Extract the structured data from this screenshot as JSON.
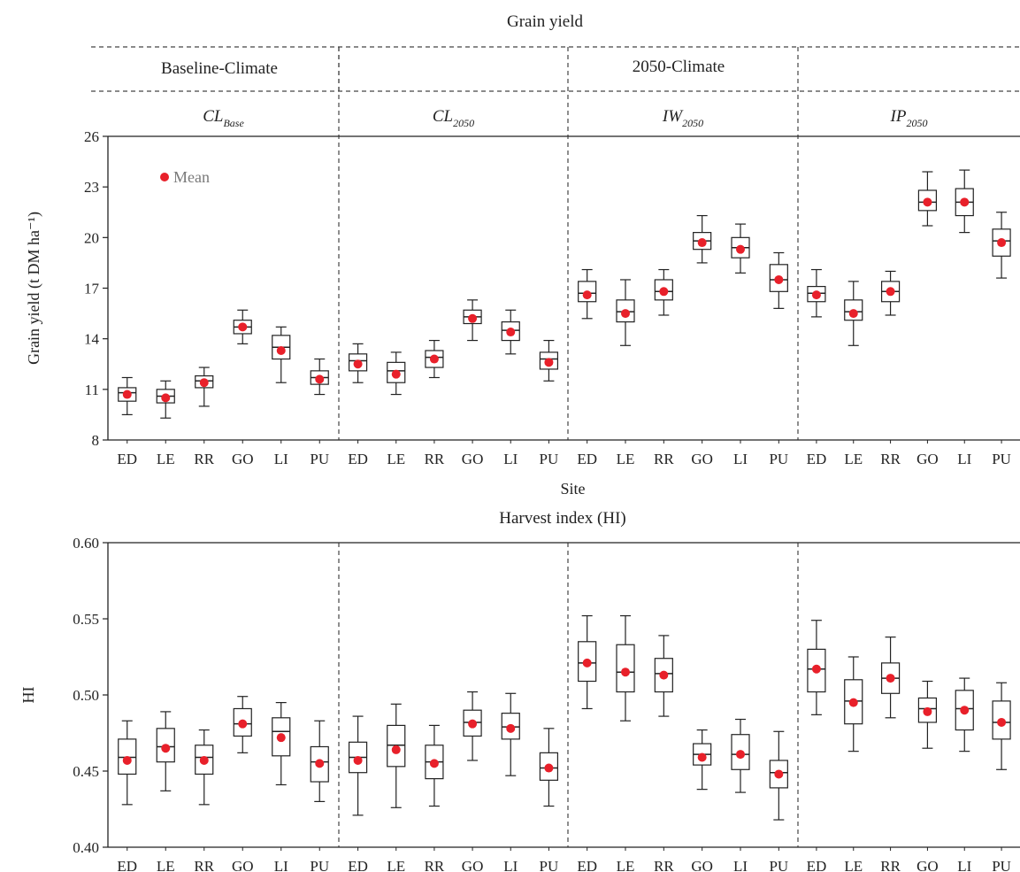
{
  "figure": {
    "top_title": "Grain yield",
    "climate_headers": [
      "Baseline-Climate",
      "2050-Climate"
    ],
    "panels": [
      {
        "name": "CL",
        "sub": "Base"
      },
      {
        "name": "CL",
        "sub": "2050"
      },
      {
        "name": "IW",
        "sub": "2050"
      },
      {
        "name": "IP",
        "sub": "2050"
      }
    ],
    "sites": [
      "ED",
      "LE",
      "RR",
      "GO",
      "LI",
      "PU"
    ],
    "mean_marker_color": "#e8202a",
    "legend_label": "Mean"
  },
  "chart_data": [
    {
      "type": "box",
      "title": "Grain yield",
      "xlabel": "Site",
      "ylabel": "Grain yield (t DM ha⁻¹)",
      "ylim": [
        8,
        26
      ],
      "yticks": [
        8,
        11,
        14,
        17,
        20,
        23,
        26
      ],
      "ytick_labels": [
        "8",
        "11",
        "14",
        "17",
        "20",
        "23",
        "26"
      ],
      "legend": {
        "label": "Mean",
        "placement": "top-left"
      },
      "groups": [
        {
          "panel": "CL Base",
          "boxes": [
            {
              "site": "ED",
              "min": 9.5,
              "q1": 10.3,
              "median": 10.8,
              "q3": 11.1,
              "max": 11.7,
              "mean": 10.7
            },
            {
              "site": "LE",
              "min": 9.3,
              "q1": 10.2,
              "median": 10.6,
              "q3": 11.0,
              "max": 11.5,
              "mean": 10.5
            },
            {
              "site": "RR",
              "min": 10.0,
              "q1": 11.1,
              "median": 11.5,
              "q3": 11.8,
              "max": 12.3,
              "mean": 11.4
            },
            {
              "site": "GO",
              "min": 13.7,
              "q1": 14.3,
              "median": 14.7,
              "q3": 15.1,
              "max": 15.7,
              "mean": 14.7
            },
            {
              "site": "LI",
              "min": 11.4,
              "q1": 12.8,
              "median": 13.5,
              "q3": 14.2,
              "max": 14.7,
              "mean": 13.3
            },
            {
              "site": "PU",
              "min": 10.7,
              "q1": 11.3,
              "median": 11.7,
              "q3": 12.1,
              "max": 12.8,
              "mean": 11.6
            }
          ]
        },
        {
          "panel": "CL 2050",
          "boxes": [
            {
              "site": "ED",
              "min": 11.4,
              "q1": 12.1,
              "median": 12.7,
              "q3": 13.1,
              "max": 13.7,
              "mean": 12.5
            },
            {
              "site": "LE",
              "min": 10.7,
              "q1": 11.4,
              "median": 12.1,
              "q3": 12.6,
              "max": 13.2,
              "mean": 11.9
            },
            {
              "site": "RR",
              "min": 11.7,
              "q1": 12.3,
              "median": 12.9,
              "q3": 13.3,
              "max": 13.9,
              "mean": 12.8
            },
            {
              "site": "GO",
              "min": 13.9,
              "q1": 14.9,
              "median": 15.3,
              "q3": 15.7,
              "max": 16.3,
              "mean": 15.2
            },
            {
              "site": "LI",
              "min": 13.1,
              "q1": 13.9,
              "median": 14.5,
              "q3": 15.0,
              "max": 15.7,
              "mean": 14.4
            },
            {
              "site": "PU",
              "min": 11.5,
              "q1": 12.2,
              "median": 12.8,
              "q3": 13.2,
              "max": 13.9,
              "mean": 12.6
            }
          ]
        },
        {
          "panel": "IW 2050",
          "boxes": [
            {
              "site": "ED",
              "min": 15.2,
              "q1": 16.2,
              "median": 16.7,
              "q3": 17.4,
              "max": 18.1,
              "mean": 16.6
            },
            {
              "site": "LE",
              "min": 13.6,
              "q1": 15.0,
              "median": 15.6,
              "q3": 16.3,
              "max": 17.5,
              "mean": 15.5
            },
            {
              "site": "RR",
              "min": 15.4,
              "q1": 16.3,
              "median": 16.8,
              "q3": 17.5,
              "max": 18.1,
              "mean": 16.8
            },
            {
              "site": "GO",
              "min": 18.5,
              "q1": 19.3,
              "median": 19.8,
              "q3": 20.3,
              "max": 21.3,
              "mean": 19.7
            },
            {
              "site": "LI",
              "min": 17.9,
              "q1": 18.8,
              "median": 19.4,
              "q3": 20.0,
              "max": 20.8,
              "mean": 19.3
            },
            {
              "site": "PU",
              "min": 15.8,
              "q1": 16.8,
              "median": 17.5,
              "q3": 18.4,
              "max": 19.1,
              "mean": 17.5
            }
          ]
        },
        {
          "panel": "IP 2050",
          "boxes": [
            {
              "site": "ED",
              "min": 15.3,
              "q1": 16.2,
              "median": 16.7,
              "q3": 17.1,
              "max": 18.1,
              "mean": 16.6
            },
            {
              "site": "LE",
              "min": 13.6,
              "q1": 15.1,
              "median": 15.6,
              "q3": 16.3,
              "max": 17.4,
              "mean": 15.5
            },
            {
              "site": "RR",
              "min": 15.4,
              "q1": 16.2,
              "median": 16.8,
              "q3": 17.4,
              "max": 18.0,
              "mean": 16.8
            },
            {
              "site": "GO",
              "min": 20.7,
              "q1": 21.6,
              "median": 22.1,
              "q3": 22.8,
              "max": 23.9,
              "mean": 22.1
            },
            {
              "site": "LI",
              "min": 20.3,
              "q1": 21.3,
              "median": 22.1,
              "q3": 22.9,
              "max": 24.0,
              "mean": 22.1
            },
            {
              "site": "PU",
              "min": 17.6,
              "q1": 18.9,
              "median": 19.8,
              "q3": 20.5,
              "max": 21.5,
              "mean": 19.7
            }
          ]
        }
      ]
    },
    {
      "type": "box",
      "title": "Harvest index (HI)",
      "xlabel": "",
      "ylabel": "HI",
      "ylim": [
        0.4,
        0.6
      ],
      "yticks": [
        0.4,
        0.45,
        0.5,
        0.55,
        0.6
      ],
      "ytick_labels": [
        "0.40",
        "0.45",
        "0.50",
        "0.55",
        "0.60"
      ],
      "groups": [
        {
          "panel": "CL Base",
          "boxes": [
            {
              "site": "ED",
              "min": 0.428,
              "q1": 0.448,
              "median": 0.459,
              "q3": 0.471,
              "max": 0.483,
              "mean": 0.457
            },
            {
              "site": "LE",
              "min": 0.437,
              "q1": 0.456,
              "median": 0.466,
              "q3": 0.478,
              "max": 0.489,
              "mean": 0.465
            },
            {
              "site": "RR",
              "min": 0.428,
              "q1": 0.448,
              "median": 0.459,
              "q3": 0.467,
              "max": 0.477,
              "mean": 0.457
            },
            {
              "site": "GO",
              "min": 0.462,
              "q1": 0.473,
              "median": 0.481,
              "q3": 0.491,
              "max": 0.499,
              "mean": 0.481
            },
            {
              "site": "LI",
              "min": 0.441,
              "q1": 0.46,
              "median": 0.476,
              "q3": 0.485,
              "max": 0.495,
              "mean": 0.472
            },
            {
              "site": "PU",
              "min": 0.43,
              "q1": 0.443,
              "median": 0.456,
              "q3": 0.466,
              "max": 0.483,
              "mean": 0.455
            }
          ]
        },
        {
          "panel": "CL 2050",
          "boxes": [
            {
              "site": "ED",
              "min": 0.421,
              "q1": 0.449,
              "median": 0.459,
              "q3": 0.469,
              "max": 0.486,
              "mean": 0.457
            },
            {
              "site": "LE",
              "min": 0.426,
              "q1": 0.453,
              "median": 0.467,
              "q3": 0.48,
              "max": 0.494,
              "mean": 0.464
            },
            {
              "site": "RR",
              "min": 0.427,
              "q1": 0.445,
              "median": 0.456,
              "q3": 0.467,
              "max": 0.48,
              "mean": 0.455
            },
            {
              "site": "GO",
              "min": 0.457,
              "q1": 0.473,
              "median": 0.482,
              "q3": 0.49,
              "max": 0.502,
              "mean": 0.481
            },
            {
              "site": "LI",
              "min": 0.447,
              "q1": 0.471,
              "median": 0.479,
              "q3": 0.488,
              "max": 0.501,
              "mean": 0.478
            },
            {
              "site": "PU",
              "min": 0.427,
              "q1": 0.444,
              "median": 0.452,
              "q3": 0.462,
              "max": 0.478,
              "mean": 0.452
            }
          ]
        },
        {
          "panel": "IW 2050",
          "boxes": [
            {
              "site": "ED",
              "min": 0.491,
              "q1": 0.509,
              "median": 0.521,
              "q3": 0.535,
              "max": 0.552,
              "mean": 0.521
            },
            {
              "site": "LE",
              "min": 0.483,
              "q1": 0.502,
              "median": 0.515,
              "q3": 0.533,
              "max": 0.552,
              "mean": 0.515
            },
            {
              "site": "RR",
              "min": 0.486,
              "q1": 0.502,
              "median": 0.514,
              "q3": 0.524,
              "max": 0.539,
              "mean": 0.513
            },
            {
              "site": "GO",
              "min": 0.438,
              "q1": 0.454,
              "median": 0.461,
              "q3": 0.468,
              "max": 0.477,
              "mean": 0.459
            },
            {
              "site": "LI",
              "min": 0.436,
              "q1": 0.451,
              "median": 0.461,
              "q3": 0.474,
              "max": 0.484,
              "mean": 0.461
            },
            {
              "site": "PU",
              "min": 0.418,
              "q1": 0.439,
              "median": 0.449,
              "q3": 0.457,
              "max": 0.476,
              "mean": 0.448
            }
          ]
        },
        {
          "panel": "IP 2050",
          "boxes": [
            {
              "site": "ED",
              "min": 0.487,
              "q1": 0.502,
              "median": 0.517,
              "q3": 0.53,
              "max": 0.549,
              "mean": 0.517
            },
            {
              "site": "LE",
              "min": 0.463,
              "q1": 0.481,
              "median": 0.496,
              "q3": 0.51,
              "max": 0.525,
              "mean": 0.495
            },
            {
              "site": "RR",
              "min": 0.485,
              "q1": 0.501,
              "median": 0.511,
              "q3": 0.521,
              "max": 0.538,
              "mean": 0.511
            },
            {
              "site": "GO",
              "min": 0.465,
              "q1": 0.482,
              "median": 0.491,
              "q3": 0.498,
              "max": 0.509,
              "mean": 0.489
            },
            {
              "site": "LI",
              "min": 0.463,
              "q1": 0.477,
              "median": 0.491,
              "q3": 0.503,
              "max": 0.511,
              "mean": 0.49
            },
            {
              "site": "PU",
              "min": 0.451,
              "q1": 0.471,
              "median": 0.482,
              "q3": 0.496,
              "max": 0.508,
              "mean": 0.482
            }
          ]
        }
      ]
    }
  ]
}
